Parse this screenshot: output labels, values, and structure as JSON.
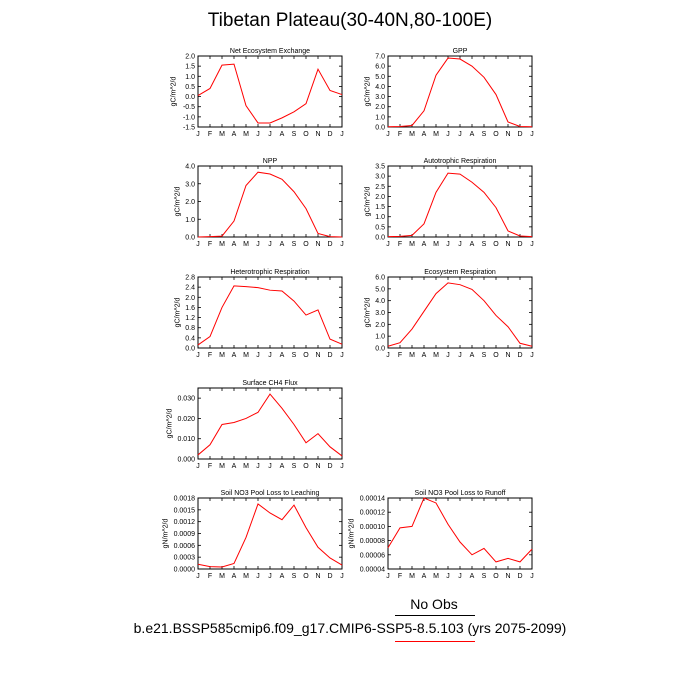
{
  "title": "Tibetan Plateau(30-40N,80-100E)",
  "footer": {
    "legend_label": "No Obs",
    "case_label": "b.e21.BSSP585cmip6.f09_g17.CMIP6-SSP5-8.5.103 (yrs 2075-2099)"
  },
  "colors": {
    "series_line": "#ff0000",
    "obs_line": "#000000"
  },
  "chart_data": [
    {
      "type": "line",
      "title": "Net Ecosystem Exchange",
      "ylabel": "gC/m^2/d",
      "x": [
        "J",
        "F",
        "M",
        "A",
        "M",
        "J",
        "J",
        "A",
        "S",
        "O",
        "N",
        "D",
        "J"
      ],
      "y": [
        0.05,
        0.4,
        1.55,
        1.6,
        -0.45,
        -1.3,
        -1.3,
        -1.05,
        -0.75,
        -0.35,
        1.35,
        0.3,
        0.1
      ],
      "ylim": [
        -1.5,
        2.0
      ],
      "yticks": [
        -1.5,
        -1.0,
        -0.5,
        0.0,
        0.5,
        1.0,
        1.5,
        2.0
      ],
      "ytick_labels": [
        "-1.5",
        "-1.0",
        "-0.5",
        "0.0",
        "0.5",
        "1.0",
        "1.5",
        "2.0"
      ]
    },
    {
      "type": "line",
      "title": "GPP",
      "ylabel": "gC/m^2/d",
      "x": [
        "J",
        "F",
        "M",
        "A",
        "M",
        "J",
        "J",
        "A",
        "S",
        "O",
        "N",
        "D",
        "J"
      ],
      "y": [
        0.02,
        0.05,
        0.15,
        1.6,
        5.1,
        6.8,
        6.7,
        6.0,
        4.9,
        3.2,
        0.5,
        0.05,
        0.02
      ],
      "ylim": [
        0.0,
        7.0
      ],
      "yticks": [
        0,
        1,
        2,
        3,
        4,
        5,
        6,
        7
      ],
      "ytick_labels": [
        "0.0",
        "1.0",
        "2.0",
        "3.0",
        "4.0",
        "5.0",
        "6.0",
        "7.0"
      ]
    },
    {
      "type": "line",
      "title": "NPP",
      "ylabel": "gC/m^2/d",
      "x": [
        "J",
        "F",
        "M",
        "A",
        "M",
        "J",
        "J",
        "A",
        "S",
        "O",
        "N",
        "D",
        "J"
      ],
      "y": [
        0.0,
        0.02,
        0.05,
        0.9,
        2.9,
        3.65,
        3.55,
        3.25,
        2.55,
        1.6,
        0.2,
        0.02,
        0.0
      ],
      "ylim": [
        0.0,
        4.0
      ],
      "yticks": [
        0,
        1,
        2,
        3,
        4
      ],
      "ytick_labels": [
        "0.0",
        "1.0",
        "2.0",
        "3.0",
        "4.0"
      ]
    },
    {
      "type": "line",
      "title": "Autotrophic Respiration",
      "ylabel": "gC/m^2/d",
      "x": [
        "J",
        "F",
        "M",
        "A",
        "M",
        "J",
        "J",
        "A",
        "S",
        "O",
        "N",
        "D",
        "J"
      ],
      "y": [
        0.02,
        0.03,
        0.08,
        0.65,
        2.2,
        3.15,
        3.1,
        2.7,
        2.2,
        1.45,
        0.3,
        0.05,
        0.02
      ],
      "ylim": [
        0.0,
        3.5
      ],
      "yticks": [
        0,
        0.5,
        1,
        1.5,
        2,
        2.5,
        3,
        3.5
      ],
      "ytick_labels": [
        "0.0",
        "0.5",
        "1.0",
        "1.5",
        "2.0",
        "2.5",
        "3.0",
        "3.5"
      ]
    },
    {
      "type": "line",
      "title": "Heterotrophic Respiration",
      "ylabel": "gC/m^2/d",
      "x": [
        "J",
        "F",
        "M",
        "A",
        "M",
        "J",
        "J",
        "A",
        "S",
        "O",
        "N",
        "D",
        "J"
      ],
      "y": [
        0.12,
        0.45,
        1.6,
        2.45,
        2.42,
        2.38,
        2.28,
        2.25,
        1.85,
        1.3,
        1.5,
        0.35,
        0.15
      ],
      "ylim": [
        0.0,
        2.8
      ],
      "yticks": [
        0,
        0.4,
        0.8,
        1.2,
        1.6,
        2.0,
        2.4,
        2.8
      ],
      "ytick_labels": [
        "0.0",
        "0.4",
        "0.8",
        "1.2",
        "1.6",
        "2.0",
        "2.4",
        "2.8"
      ]
    },
    {
      "type": "line",
      "title": "Ecosystem Respiration",
      "ylabel": "gC/m^2/d",
      "x": [
        "J",
        "F",
        "M",
        "A",
        "M",
        "J",
        "J",
        "A",
        "S",
        "O",
        "N",
        "D",
        "J"
      ],
      "y": [
        0.15,
        0.45,
        1.6,
        3.1,
        4.6,
        5.5,
        5.35,
        4.95,
        4.0,
        2.75,
        1.8,
        0.4,
        0.15
      ],
      "ylim": [
        0.0,
        6.0
      ],
      "yticks": [
        0,
        1,
        2,
        3,
        4,
        5,
        6
      ],
      "ytick_labels": [
        "0.0",
        "1.0",
        "2.0",
        "3.0",
        "4.0",
        "5.0",
        "6.0"
      ]
    },
    {
      "type": "line",
      "title": "Surface CH4 Flux",
      "ylabel": "gC/m^2/d",
      "x": [
        "J",
        "F",
        "M",
        "A",
        "M",
        "J",
        "J",
        "A",
        "S",
        "O",
        "N",
        "D",
        "J"
      ],
      "y": [
        0.002,
        0.007,
        0.017,
        0.018,
        0.02,
        0.023,
        0.032,
        0.025,
        0.017,
        0.008,
        0.0125,
        0.006,
        0.0015
      ],
      "ylim": [
        0.0,
        0.035
      ],
      "yticks": [
        0,
        0.01,
        0.02,
        0.03
      ],
      "ytick_labels": [
        "0.000",
        "0.010",
        "0.020",
        "0.030"
      ]
    },
    {
      "type": "line",
      "title": "Soil NO3 Pool Loss to Leaching",
      "ylabel": "gN/m^2/d",
      "x": [
        "J",
        "F",
        "M",
        "A",
        "M",
        "J",
        "J",
        "A",
        "S",
        "O",
        "N",
        "D",
        "J"
      ],
      "y": [
        0.00012,
        6e-05,
        5e-05,
        0.00014,
        0.0008,
        0.00165,
        0.00142,
        0.00125,
        0.00162,
        0.00105,
        0.00055,
        0.00028,
        0.0001
      ],
      "ylim": [
        0.0,
        0.0018
      ],
      "yticks": [
        0,
        0.0003,
        0.0006,
        0.0009,
        0.0012,
        0.0015,
        0.0018
      ],
      "ytick_labels": [
        "0.0000",
        "0.0003",
        "0.0006",
        "0.0009",
        "0.0012",
        "0.0015",
        "0.0018"
      ]
    },
    {
      "type": "line",
      "title": "Soil NO3 Pool Loss to Runoff",
      "ylabel": "gN/m^2/d",
      "x": [
        "J",
        "F",
        "M",
        "A",
        "M",
        "J",
        "J",
        "A",
        "S",
        "O",
        "N",
        "D",
        "J"
      ],
      "y": [
        7e-05,
        9.8e-05,
        0.0001,
        0.00014,
        0.000133,
        0.000103,
        7.8e-05,
        6e-05,
        6.9e-05,
        5e-05,
        5.5e-05,
        5e-05,
        6.8e-05
      ],
      "ylim": [
        4e-05,
        0.00014
      ],
      "yticks": [
        4e-05,
        6e-05,
        8e-05,
        0.0001,
        0.00012,
        0.00014
      ],
      "ytick_labels": [
        "0.00004",
        "0.00006",
        "0.00008",
        "0.00010",
        "0.00012",
        "0.00014"
      ]
    }
  ]
}
